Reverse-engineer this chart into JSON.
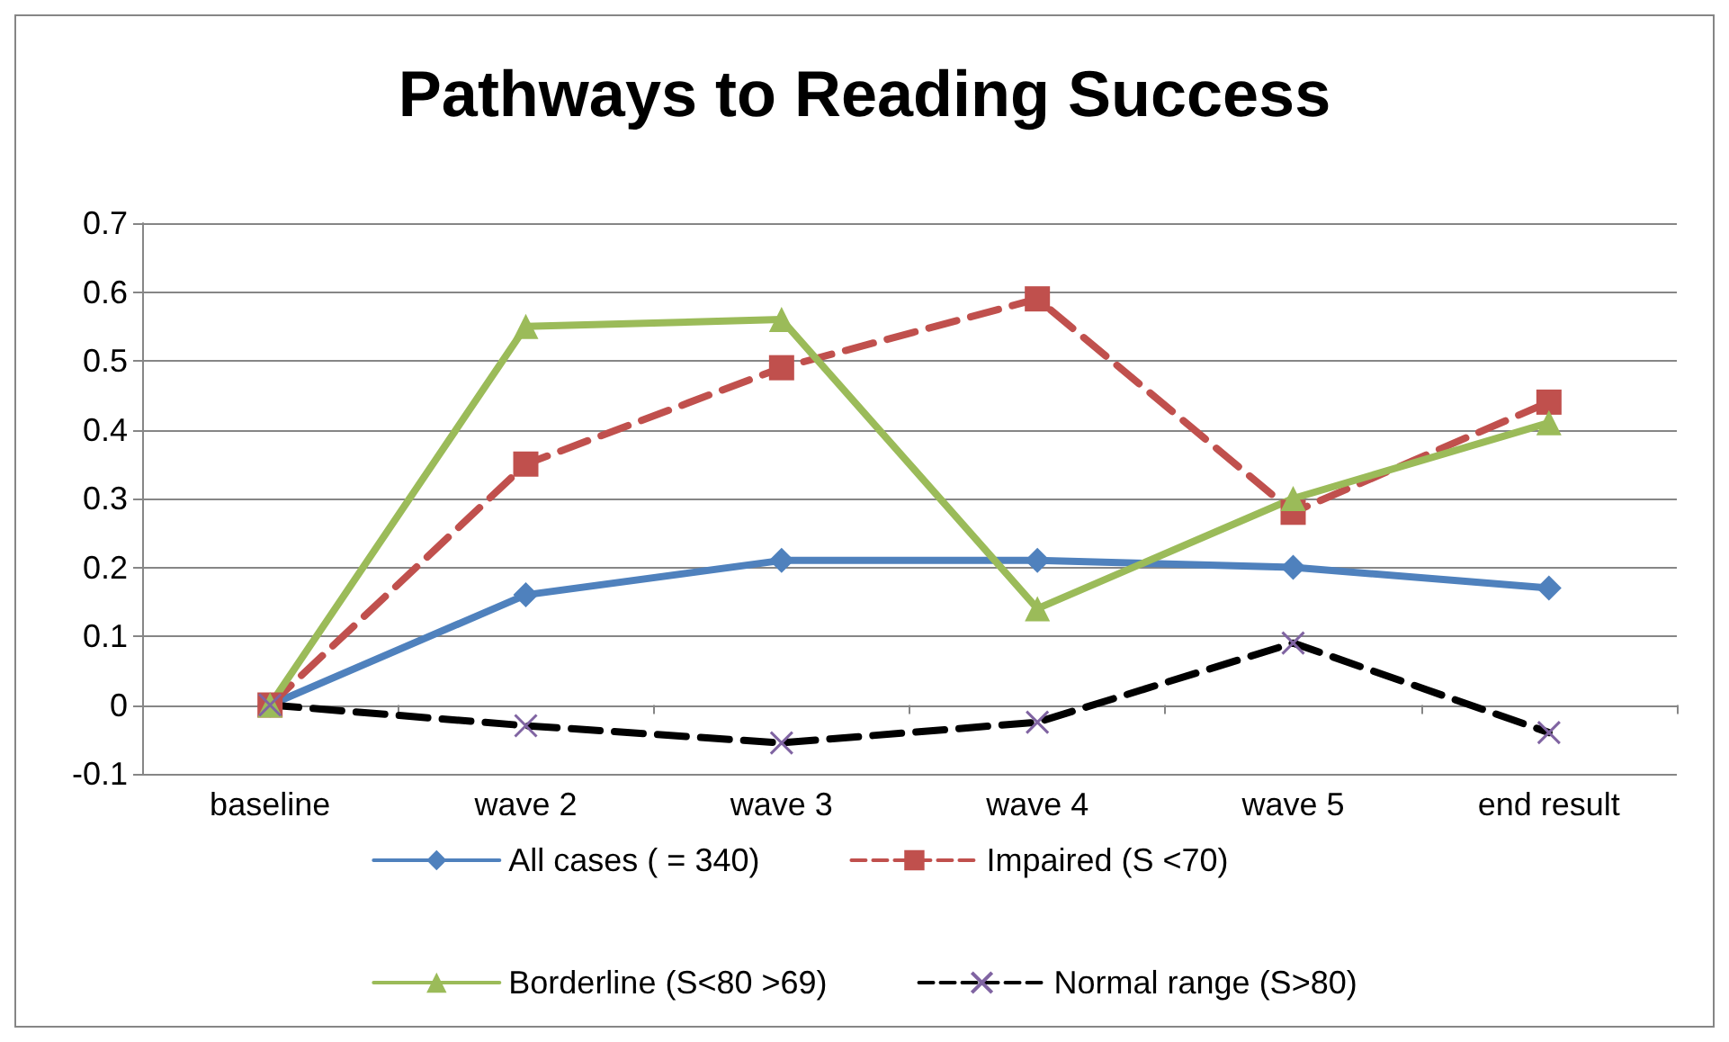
{
  "chart_data": {
    "type": "line",
    "title": "Pathways to Reading Success",
    "categories": [
      "baseline",
      "wave 2",
      "wave 3",
      "wave 4",
      "wave 5",
      "end result"
    ],
    "series": [
      {
        "name": "All cases ( = 340)",
        "color": "#4f81bd",
        "marker": "diamond",
        "line_style": "solid",
        "values": [
          0,
          0.16,
          0.21,
          0.21,
          0.2,
          0.17
        ]
      },
      {
        "name": "Impaired (S <70)",
        "color": "#c0504d",
        "marker": "square",
        "line_style": "dashed",
        "values": [
          0,
          0.35,
          0.49,
          0.59,
          0.28,
          0.44
        ]
      },
      {
        "name": "Borderline (S<80 >69)",
        "color": "#9bbb59",
        "marker": "triangle",
        "line_style": "solid",
        "values": [
          0,
          0.55,
          0.56,
          0.14,
          0.3,
          0.41
        ]
      },
      {
        "name": "Normal range (S>80)",
        "color": "#000000",
        "marker": "cross",
        "line_style": "dashed",
        "values": [
          0,
          -0.03,
          -0.055,
          -0.025,
          0.09,
          -0.04
        ]
      }
    ],
    "ylim": [
      -0.1,
      0.7
    ],
    "yticks": [
      -0.1,
      0,
      0.1,
      0.2,
      0.3,
      0.4,
      0.5,
      0.6,
      0.7
    ],
    "grid": "y",
    "legend": "bottom"
  }
}
